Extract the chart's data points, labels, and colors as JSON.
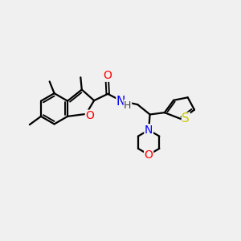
{
  "bg_color": "#f0f0f0",
  "bond_color": "#000000",
  "bond_width": 1.6,
  "atom_colors": {
    "O": "#ff0000",
    "N": "#0000ff",
    "S": "#cccc00",
    "C": "#000000",
    "H": "#444444"
  },
  "font_size": 10,
  "figsize": [
    3.0,
    3.0
  ],
  "dpi": 100
}
